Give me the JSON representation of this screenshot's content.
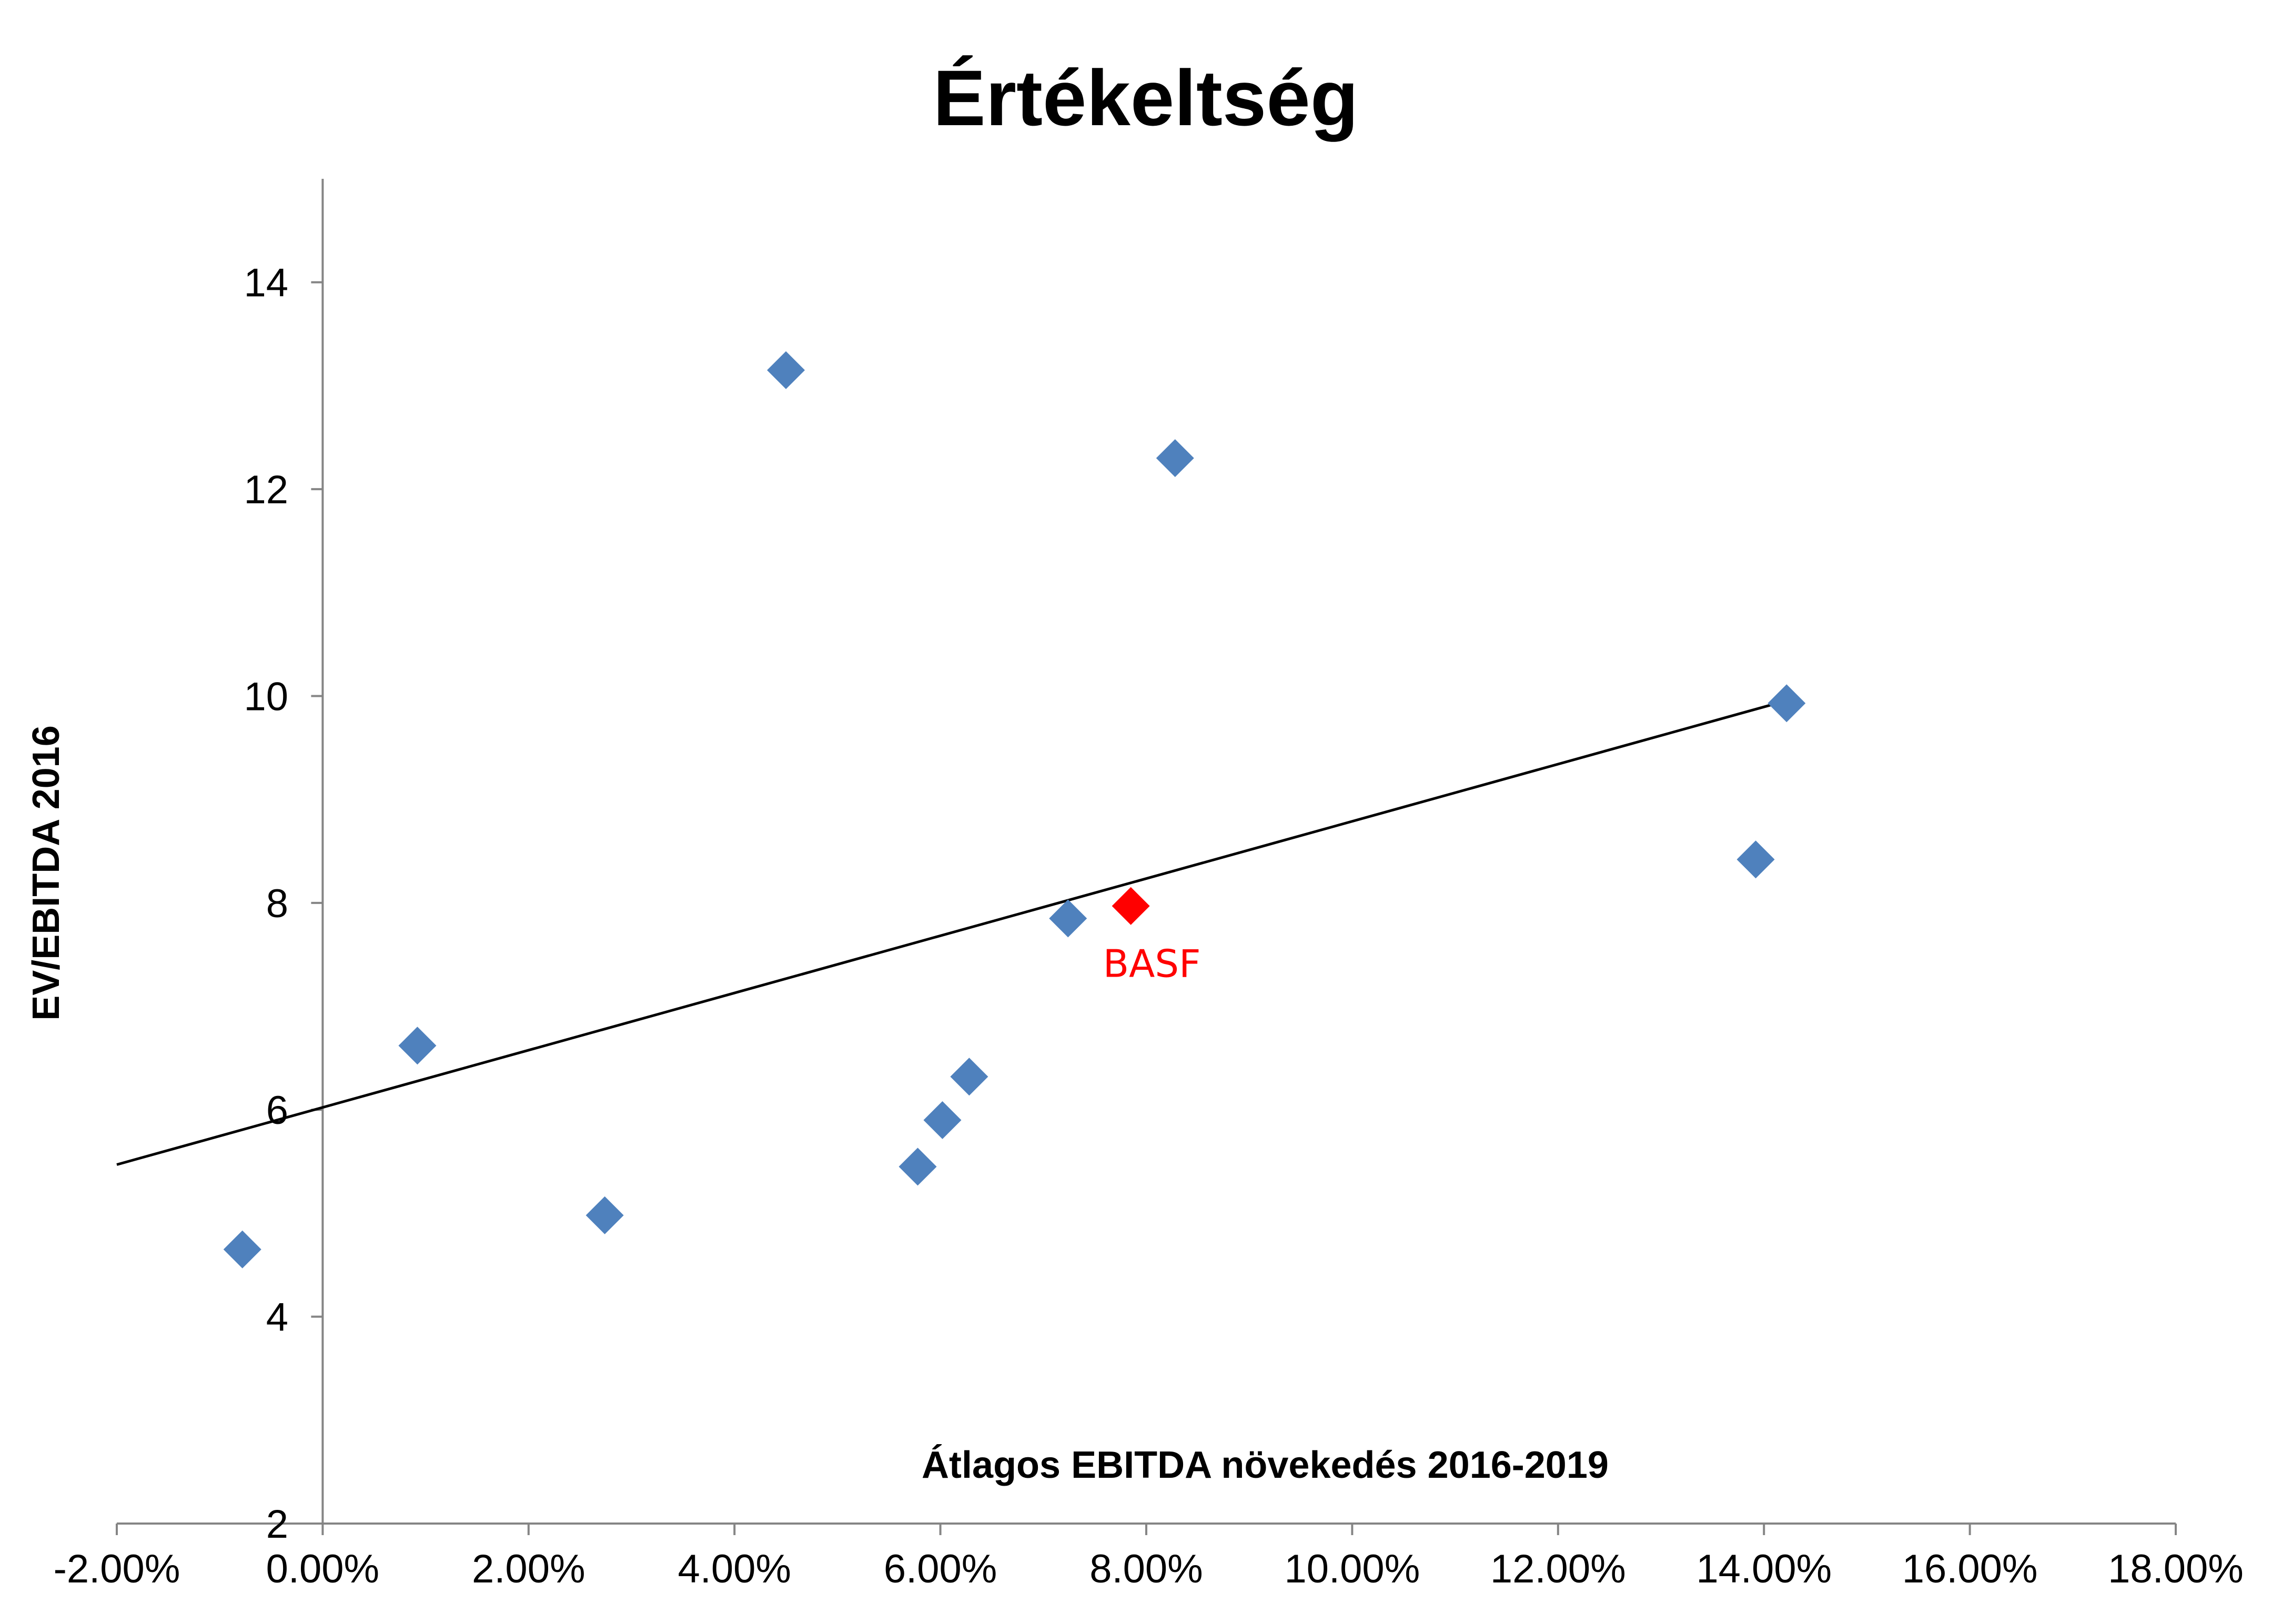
{
  "chart_data": {
    "type": "scatter",
    "title": "Értékeltség",
    "xlabel": "Átlagos EBITDA növekedés 2016-2019",
    "ylabel": "EV/EBITDA 2016",
    "xlim": [
      -0.02,
      0.18
    ],
    "ylim": [
      2,
      15
    ],
    "x_ticks": [
      -0.02,
      0,
      0.02,
      0.04,
      0.06,
      0.08,
      0.1,
      0.12,
      0.14,
      0.16,
      0.18
    ],
    "x_tick_labels": [
      "-2.00%",
      "0.00%",
      "2.00%",
      "4.00%",
      "6.00%",
      "8.00%",
      "10.00%",
      "12.00%",
      "14.00%",
      "16.00%",
      "18.00%"
    ],
    "y_ticks": [
      2,
      4,
      6,
      8,
      10,
      12,
      14
    ],
    "y_tick_labels": [
      "2",
      "4",
      "6",
      "8",
      "10",
      "12",
      "14"
    ],
    "grid": false,
    "legend": "none",
    "series": [
      {
        "color": "#4F81BD",
        "marker": "diamond",
        "points": [
          {
            "x": -0.0078,
            "y": 4.65
          },
          {
            "x": 0.0092,
            "y": 6.62
          },
          {
            "x": 0.0274,
            "y": 4.98
          },
          {
            "x": 0.045,
            "y": 13.15
          },
          {
            "x": 0.0578,
            "y": 5.45
          },
          {
            "x": 0.0602,
            "y": 5.9
          },
          {
            "x": 0.0628,
            "y": 6.32
          },
          {
            "x": 0.0724,
            "y": 7.85
          },
          {
            "x": 0.0828,
            "y": 12.3
          },
          {
            "x": 0.1392,
            "y": 8.42
          },
          {
            "x": 0.1422,
            "y": 9.93
          }
        ]
      },
      {
        "color": "#FF0000",
        "marker": "diamond",
        "points": [
          {
            "x": 0.0785,
            "y": 7.97,
            "label": "BASF"
          }
        ]
      }
    ],
    "trendline": {
      "color": "#000000",
      "from": {
        "x": -0.02,
        "y": 5.47
      },
      "to": {
        "x": 0.142,
        "y": 9.95
      }
    }
  }
}
